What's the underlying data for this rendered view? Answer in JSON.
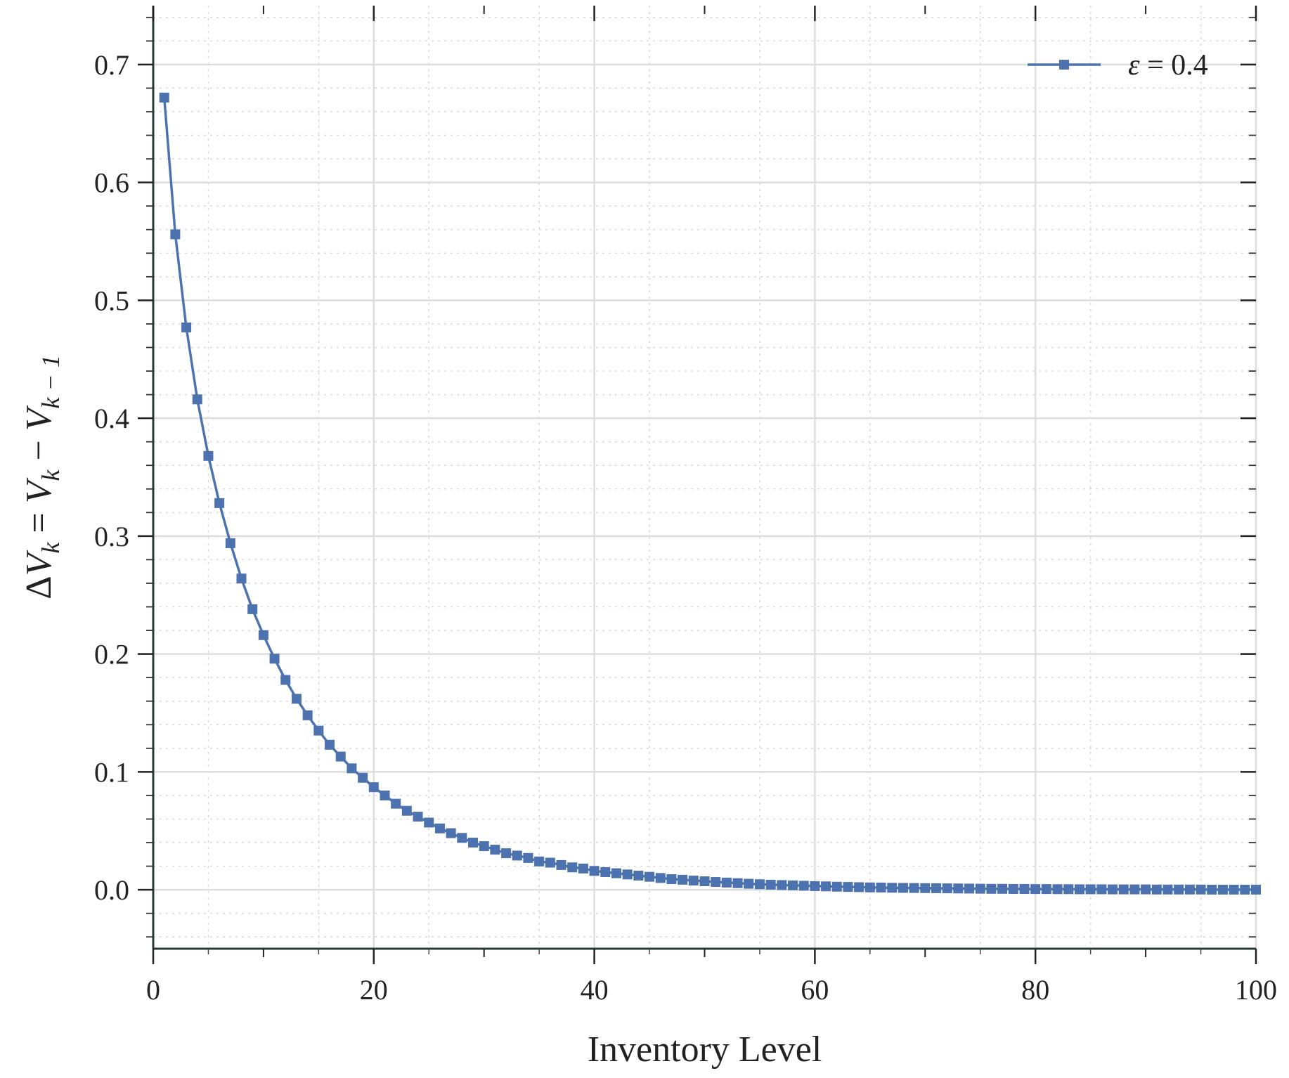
{
  "chart_data": {
    "type": "line",
    "xlabel": "Inventory Level",
    "ylabel_parts": {
      "delta": "Δ",
      "v": "V",
      "k": "k",
      "equals": " = ",
      "minus": " − ",
      "km1": "k − 1"
    },
    "xlim": [
      0,
      100
    ],
    "ylim": [
      -0.05,
      0.75
    ],
    "xticks": [
      0,
      20,
      40,
      60,
      80,
      100
    ],
    "xtick_labels": [
      "0",
      "20",
      "40",
      "60",
      "80",
      "100"
    ],
    "yticks": [
      0.0,
      0.1,
      0.2,
      0.3,
      0.4,
      0.5,
      0.6,
      0.7
    ],
    "ytick_labels": [
      "0.0",
      "0.1",
      "0.2",
      "0.3",
      "0.4",
      "0.5",
      "0.6",
      "0.7"
    ],
    "grid": true,
    "minor_grid": true,
    "legend_position": "top-right",
    "series": [
      {
        "name_parts": {
          "symbol": "ε",
          "equals": " = ",
          "value": "0.4"
        },
        "color": "#4c72b0",
        "marker": "square",
        "x": [
          1,
          2,
          3,
          4,
          5,
          6,
          7,
          8,
          9,
          10,
          11,
          12,
          13,
          14,
          15,
          16,
          17,
          18,
          19,
          20,
          21,
          22,
          23,
          24,
          25,
          26,
          27,
          28,
          29,
          30,
          31,
          32,
          33,
          34,
          35,
          36,
          37,
          38,
          39,
          40,
          41,
          42,
          43,
          44,
          45,
          46,
          47,
          48,
          49,
          50,
          51,
          52,
          53,
          54,
          55,
          56,
          57,
          58,
          59,
          60,
          61,
          62,
          63,
          64,
          65,
          66,
          67,
          68,
          69,
          70,
          71,
          72,
          73,
          74,
          75,
          76,
          77,
          78,
          79,
          80,
          81,
          82,
          83,
          84,
          85,
          86,
          87,
          88,
          89,
          90,
          91,
          92,
          93,
          94,
          95,
          96,
          97,
          98,
          99,
          100
        ],
        "y": [
          0.672,
          0.556,
          0.477,
          0.416,
          0.368,
          0.328,
          0.294,
          0.264,
          0.238,
          0.216,
          0.196,
          0.178,
          0.162,
          0.148,
          0.135,
          0.123,
          0.113,
          0.103,
          0.095,
          0.087,
          0.08,
          0.073,
          0.067,
          0.062,
          0.057,
          0.052,
          0.048,
          0.044,
          0.04,
          0.037,
          0.034,
          0.031,
          0.029,
          0.027,
          0.024,
          0.023,
          0.021,
          0.019,
          0.018,
          0.016,
          0.015,
          0.014,
          0.013,
          0.012,
          0.011,
          0.01,
          0.009,
          0.0085,
          0.0078,
          0.0072,
          0.0066,
          0.0061,
          0.0056,
          0.0051,
          0.0047,
          0.0043,
          0.004,
          0.0037,
          0.0034,
          0.0031,
          0.0029,
          0.0026,
          0.0024,
          0.0022,
          0.002,
          0.0019,
          0.0017,
          0.0016,
          0.0015,
          0.0014,
          0.0013,
          0.0012,
          0.0011,
          0.001,
          0.0009,
          0.0008,
          0.0008,
          0.0007,
          0.0007,
          0.0006,
          0.0006,
          0.0005,
          0.0005,
          0.0004,
          0.0004,
          0.0004,
          0.0003,
          0.0003,
          0.0003,
          0.0003,
          0.0002,
          0.0002,
          0.0002,
          0.0002,
          0.0002,
          0.0001,
          0.0001,
          0.0001,
          0.0001,
          0.0001
        ]
      }
    ]
  }
}
